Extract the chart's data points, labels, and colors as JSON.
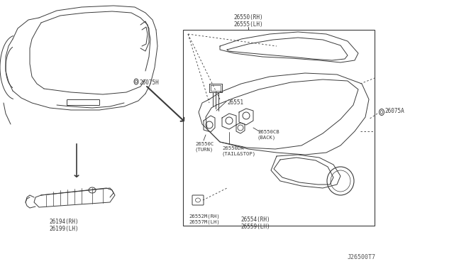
{
  "bg_color": "#ffffff",
  "line_color": "#3a3a3a",
  "text_color": "#3a3a3a",
  "diagram_code": "J26500T7",
  "labels": {
    "26550RH_26555LH": "26550(RH)\n26555(LH)",
    "26551": "26551",
    "26550CB": "26550CB\n(BACK)",
    "26550C": "26550C\n(TURN)",
    "26550DA": "26550DA\n(TAIL&STOP)",
    "26554RH_26559LH": "26554(RH)\n26559(LH)",
    "26552MKRH_26557MKLH": "26552M(RH)\n26557M(LH)",
    "26194RH_26199LH": "26194(RH)\n26199(LH)",
    "26075H": "26075H",
    "26075A": "26075A"
  }
}
